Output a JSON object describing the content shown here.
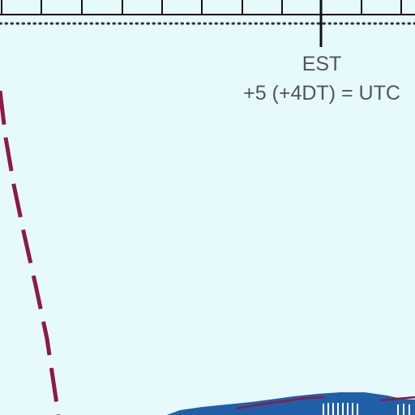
{
  "map": {
    "background_color": "#e6f9fc",
    "zone": {
      "name": "EST",
      "offset": "+5 (+4DT) = UTC"
    },
    "colors": {
      "timezone_boundary": "#8b1a4a",
      "land": "#1f5fa8",
      "land_outline": "#8b1a4a",
      "graticule": "#111111",
      "label_text": "#555555"
    }
  }
}
